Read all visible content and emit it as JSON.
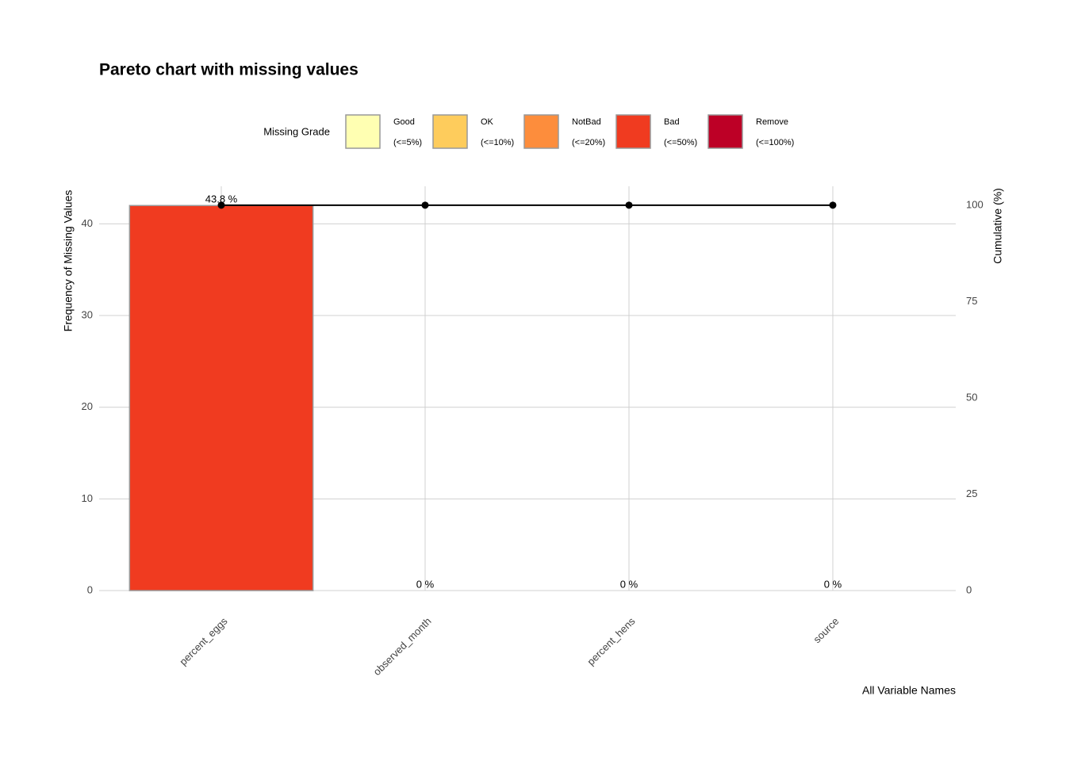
{
  "chart_data": {
    "type": "pareto",
    "title": "Pareto chart with missing values",
    "legend_title": "Missing Grade",
    "legend": [
      {
        "name": "Good",
        "range": "(<=5%)",
        "color": "#FFFFB2"
      },
      {
        "name": "OK",
        "range": "(<=10%)",
        "color": "#FECC5C"
      },
      {
        "name": "NotBad",
        "range": "(<=20%)",
        "color": "#FD8D3C"
      },
      {
        "name": "Bad",
        "range": "(<=50%)",
        "color": "#F03B20"
      },
      {
        "name": "Remove",
        "range": "(<=100%)",
        "color": "#BD0026"
      }
    ],
    "categories": [
      "percent_eggs",
      "observed_month",
      "percent_hens",
      "source"
    ],
    "series": [
      {
        "name": "Frequency of Missing Values",
        "values": [
          42,
          0,
          0,
          0
        ],
        "colors": [
          "#F03B20",
          "#F03B20",
          "#F03B20",
          "#F03B20"
        ]
      },
      {
        "name": "Cumulative (%)",
        "axis": "y2",
        "values": [
          100,
          100,
          100,
          100
        ],
        "color": "#000000"
      }
    ],
    "percent_labels": [
      "43.8 %",
      "0 %",
      "0 %",
      "0 %"
    ],
    "ylabel": "Frequency of Missing Values",
    "y2label": "Cumulative (%)",
    "xlabel": "All Variable Names",
    "ylim": [
      0,
      44.1
    ],
    "yticks": [
      0,
      10,
      20,
      30,
      40
    ],
    "y2lim": [
      0,
      104.9
    ],
    "y2ticks": [
      0,
      25,
      50,
      75,
      100
    ],
    "grid": true
  }
}
